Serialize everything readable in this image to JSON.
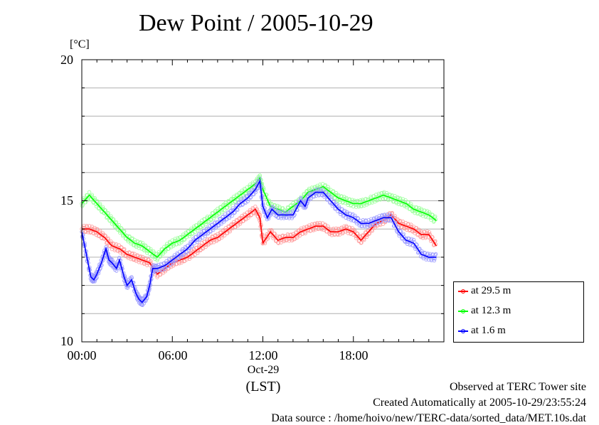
{
  "chart_data": {
    "type": "line",
    "title": "Dew Point / 2005-10-29",
    "ylabel": "[°C]",
    "ylim": [
      10,
      20
    ],
    "yticks": [
      "10",
      "15",
      "20"
    ],
    "xlim": [
      0,
      24
    ],
    "xticks": [
      {
        "value": 0,
        "label": "00:00"
      },
      {
        "value": 6,
        "label": "06:00"
      },
      {
        "value": 12,
        "label": "12:00"
      },
      {
        "value": 18,
        "label": "18:00"
      }
    ],
    "xdate": "Oct-29",
    "xunit": "(LST)",
    "grid": true,
    "legend_position": "bottom-right",
    "series": [
      {
        "name": "at 29.5 m",
        "color": "#ff0000",
        "x": [
          0,
          0.5,
          1,
          1.5,
          2,
          2.5,
          3,
          3.5,
          4,
          4.5,
          5,
          5.5,
          6,
          6.5,
          7,
          7.5,
          8,
          8.5,
          9,
          9.5,
          10,
          10.5,
          11,
          11.5,
          11.8,
          12,
          12.5,
          13,
          13.5,
          14,
          14.5,
          15,
          15.5,
          16,
          16.5,
          17,
          17.5,
          18,
          18.5,
          19,
          19.5,
          20,
          20.5,
          21,
          21.5,
          22,
          22.5,
          23,
          23.5
        ],
        "y": [
          14.0,
          14.0,
          13.9,
          13.7,
          13.4,
          13.3,
          13.1,
          13.0,
          12.9,
          12.8,
          12.4,
          12.6,
          12.8,
          12.9,
          13.0,
          13.2,
          13.4,
          13.6,
          13.7,
          13.9,
          14.1,
          14.3,
          14.5,
          14.7,
          14.4,
          13.5,
          13.9,
          13.6,
          13.7,
          13.7,
          13.9,
          14.0,
          14.1,
          14.1,
          13.9,
          13.9,
          14.0,
          13.9,
          13.6,
          13.9,
          14.2,
          14.3,
          14.5,
          14.2,
          14.1,
          14.0,
          13.8,
          13.8,
          13.4
        ]
      },
      {
        "name": "at 12.3 m",
        "color": "#00ff00",
        "x": [
          0,
          0.5,
          1,
          1.5,
          2,
          2.5,
          3,
          3.5,
          4,
          4.5,
          5,
          5.5,
          6,
          6.5,
          7,
          7.5,
          8,
          8.5,
          9,
          9.5,
          10,
          10.5,
          11,
          11.5,
          11.8,
          12,
          12.5,
          13,
          13.5,
          14,
          14.5,
          15,
          15.5,
          16,
          16.5,
          17,
          17.5,
          18,
          18.5,
          19,
          19.5,
          20,
          20.5,
          21,
          21.5,
          22,
          22.5,
          23,
          23.5
        ],
        "y": [
          14.9,
          15.2,
          14.9,
          14.6,
          14.3,
          14.0,
          13.7,
          13.5,
          13.4,
          13.2,
          13.0,
          13.3,
          13.5,
          13.6,
          13.8,
          14.0,
          14.2,
          14.4,
          14.6,
          14.8,
          15.0,
          15.2,
          15.4,
          15.6,
          15.8,
          15.4,
          14.8,
          14.7,
          14.6,
          14.8,
          15.0,
          15.3,
          15.4,
          15.5,
          15.3,
          15.1,
          15.0,
          14.9,
          14.9,
          15.0,
          15.1,
          15.2,
          15.1,
          15.0,
          14.9,
          14.7,
          14.6,
          14.5,
          14.3
        ]
      },
      {
        "name": "at 1.6 m",
        "color": "#0000ff",
        "x": [
          0,
          0.3,
          0.6,
          0.8,
          1,
          1.3,
          1.6,
          1.8,
          2,
          2.3,
          2.5,
          2.8,
          3,
          3.3,
          3.6,
          3.8,
          4,
          4.3,
          4.5,
          4.7,
          5,
          5.5,
          6,
          6.5,
          7,
          7.5,
          8,
          8.5,
          9,
          9.5,
          10,
          10.5,
          11,
          11.5,
          11.8,
          12,
          12.3,
          12.6,
          13,
          13.5,
          14,
          14.5,
          14.8,
          15,
          15.5,
          16,
          16.5,
          17,
          17.5,
          18,
          18.5,
          19,
          19.5,
          20,
          20.5,
          21,
          21.5,
          22,
          22.5,
          23,
          23.5
        ],
        "y": [
          13.9,
          13.1,
          12.3,
          12.2,
          12.4,
          12.8,
          13.3,
          12.9,
          12.8,
          12.6,
          12.9,
          12.3,
          12.0,
          12.2,
          11.7,
          11.5,
          11.4,
          11.6,
          12.0,
          12.6,
          12.6,
          12.7,
          12.9,
          13.1,
          13.3,
          13.6,
          13.8,
          14.0,
          14.2,
          14.4,
          14.6,
          14.9,
          15.1,
          15.4,
          15.7,
          14.8,
          14.4,
          14.7,
          14.5,
          14.5,
          14.5,
          15.0,
          14.8,
          15.1,
          15.3,
          15.3,
          15.0,
          14.7,
          14.5,
          14.4,
          14.2,
          14.2,
          14.3,
          14.4,
          14.4,
          13.9,
          13.6,
          13.5,
          13.1,
          13.0,
          13.0
        ]
      }
    ]
  },
  "footer": {
    "line1": "Observed at TERC Tower site",
    "line2": "Created Automatically at 2005-10-29/23:55:24",
    "line3": "Data source : /home/hoivo/new/TERC-data/sorted_data/MET.10s.dat"
  }
}
